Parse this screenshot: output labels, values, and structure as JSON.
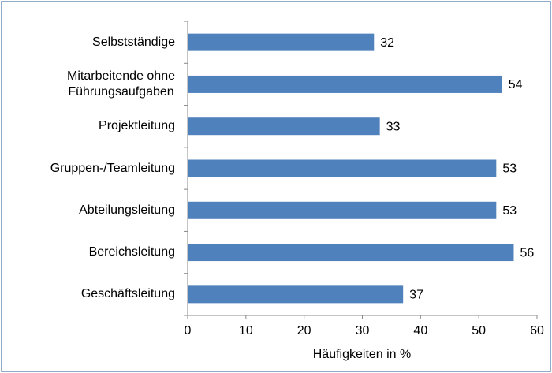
{
  "chart_data": {
    "type": "hbar",
    "categories": [
      "Selbstständige",
      "Mitarbeitende ohne\nFührungsaufgaben",
      "Projektleitung",
      "Gruppen-/Teamleitung",
      "Abteilungsleitung",
      "Bereichsleitung",
      "Geschäftsleitung"
    ],
    "values": [
      32,
      54,
      33,
      53,
      53,
      56,
      37
    ],
    "color": "#4f81bd",
    "xlabel": "Häufigkeiten in %",
    "xlim": [
      0,
      60
    ],
    "xticks": [
      0,
      10,
      20,
      30,
      40,
      50,
      60
    ],
    "grid": false
  }
}
